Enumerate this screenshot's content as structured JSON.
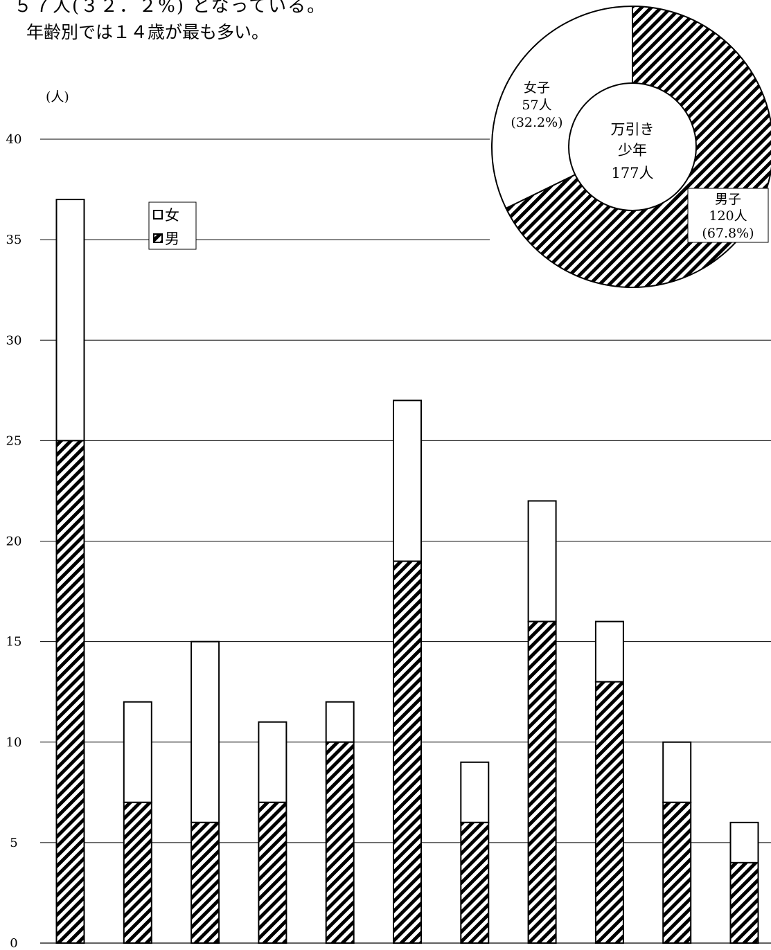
{
  "intro": {
    "line1": "５７人(３２．２%) となっている。",
    "line2": "年齢別では１４歳が最も多い。"
  },
  "chart_data": [
    {
      "type": "bar",
      "stacked": true,
      "ylabel": "(人)",
      "ylim": [
        0,
        40
      ],
      "yticks": [
        0,
        5,
        10,
        15,
        20,
        25,
        30,
        35,
        40
      ],
      "grid": true,
      "legend_position": "upper-left",
      "categories": [
        "",
        "",
        "",
        "",
        "",
        "",
        "",
        "",
        "",
        "",
        ""
      ],
      "series": [
        {
          "name": "男",
          "pattern": "diagonal-hatch",
          "values": [
            25,
            7,
            6,
            7,
            10,
            19,
            6,
            16,
            13,
            7,
            4
          ]
        },
        {
          "name": "女",
          "pattern": "white",
          "values": [
            12,
            5,
            9,
            4,
            2,
            8,
            3,
            6,
            3,
            3,
            2
          ]
        }
      ],
      "totals": [
        37,
        12,
        15,
        11,
        12,
        27,
        9,
        22,
        16,
        10,
        6
      ],
      "legend": [
        "女",
        "男"
      ]
    },
    {
      "type": "pie",
      "donut": true,
      "center_label": [
        "万引き",
        "少年",
        "177人"
      ],
      "slices": [
        {
          "label": "男子",
          "count_label": "120人",
          "percent_label": "(67.8%)",
          "value": 120,
          "pattern": "diagonal-hatch"
        },
        {
          "label": "女子",
          "count_label": "57人",
          "percent_label": "(32.2%)",
          "value": 57,
          "pattern": "white"
        }
      ]
    }
  ]
}
